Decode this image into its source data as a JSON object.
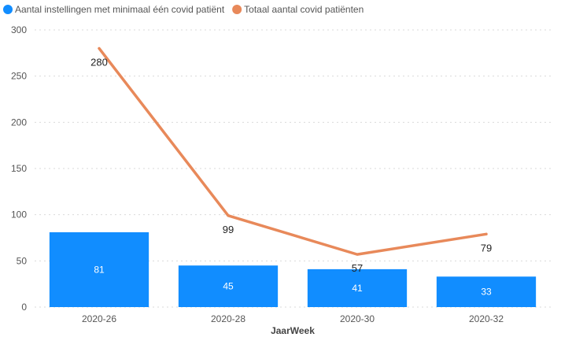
{
  "chart_data": {
    "type": "bar",
    "categories": [
      "2020-26",
      "2020-28",
      "2020-30",
      "2020-32"
    ],
    "series": [
      {
        "name": "Aantal instellingen met minimaal één covid patiënt",
        "type": "bar",
        "values": [
          81,
          45,
          41,
          33
        ],
        "color": "#118dff"
      },
      {
        "name": "Totaal aantal covid patiënten",
        "type": "line",
        "values": [
          280,
          99,
          57,
          79
        ],
        "color": "#e8895a"
      }
    ],
    "xlabel": "JaarWeek",
    "ylabel": "",
    "ylim": [
      0,
      300
    ],
    "yticks": [
      0,
      50,
      100,
      150,
      200,
      250,
      300
    ],
    "grid": true,
    "legend_position": "top-left"
  }
}
